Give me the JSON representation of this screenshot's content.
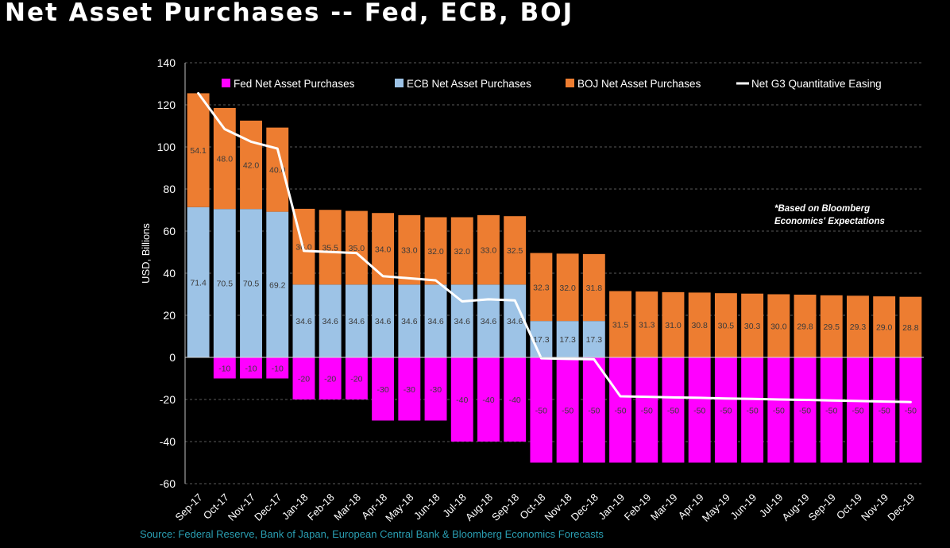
{
  "title": "Net Asset Purchases -- Fed, ECB, BOJ",
  "source": "Source: Federal Reserve, Bank of Japan, European Central Bank & Bloomberg Economics Forecasts",
  "footnote": [
    "*Based on Bloomberg",
    "Economics' Expectations"
  ],
  "colors": {
    "fed": "#ff00ff",
    "ecb": "#9dc3e6",
    "boj": "#ed7d31",
    "line": "#ffffff",
    "grid": "#808080",
    "text": "#ffffff",
    "source": "#2a9fb3"
  },
  "chart_data": {
    "type": "bar",
    "stacked": true,
    "ylabel": "USD, Billions",
    "ylim": [
      -60,
      140
    ],
    "yticks": [
      -60,
      -40,
      -20,
      0,
      20,
      40,
      60,
      80,
      100,
      120,
      140
    ],
    "grid": true,
    "legend_position": "top",
    "categories": [
      "Sep-17",
      "Oct-17",
      "Nov-17",
      "Dec-17",
      "Jan-18",
      "Feb-18",
      "Mar-18",
      "Apr-18",
      "May-18",
      "Jun-18",
      "Jul-18",
      "Aug-18",
      "Sep-18",
      "Oct-18",
      "Nov-18",
      "Dec-18",
      "Jan-19",
      "Feb-19",
      "Mar-19",
      "Apr-19",
      "May-19",
      "Jun-19",
      "Jul-19",
      "Aug-19",
      "Sep-19",
      "Oct-19",
      "Nov-19",
      "Dec-19"
    ],
    "series": [
      {
        "name": "Fed Net Asset Purchases",
        "type": "bar",
        "color_key": "fed",
        "values": [
          0,
          -10,
          -10,
          -10,
          -20,
          -20,
          -20,
          -30,
          -30,
          -30,
          -40,
          -40,
          -40,
          -50,
          -50,
          -50,
          -50,
          -50,
          -50,
          -50,
          -50,
          -50,
          -50,
          -50,
          -50,
          -50,
          -50,
          -50
        ]
      },
      {
        "name": "ECB Net Asset Purchases",
        "type": "bar",
        "color_key": "ecb",
        "values": [
          71.4,
          70.5,
          70.5,
          69.2,
          34.6,
          34.6,
          34.6,
          34.6,
          34.6,
          34.6,
          34.6,
          34.6,
          34.6,
          17.3,
          17.3,
          17.3,
          0,
          0,
          0,
          0,
          0,
          0,
          0,
          0,
          0,
          0,
          0,
          0
        ]
      },
      {
        "name": "BOJ Net Asset Purchases",
        "type": "bar",
        "color_key": "boj",
        "values": [
          54.1,
          48.0,
          42.0,
          40.0,
          36.0,
          35.5,
          35.0,
          34.0,
          33.0,
          32.0,
          32.0,
          33.0,
          32.5,
          32.3,
          32.0,
          31.8,
          31.5,
          31.3,
          31.0,
          30.8,
          30.5,
          30.3,
          30.0,
          29.8,
          29.5,
          29.3,
          29.0,
          28.8
        ]
      },
      {
        "name": "Net G3 Quantitative Easing",
        "type": "line",
        "color_key": "line",
        "values": [
          125.5,
          108.5,
          102.5,
          99.2,
          50.6,
          50.1,
          49.6,
          38.6,
          37.6,
          36.6,
          26.6,
          27.6,
          27.1,
          -0.4,
          -0.7,
          -0.9,
          -18.5,
          -18.7,
          -19.0,
          -19.2,
          -19.5,
          -19.7,
          -20.0,
          -20.2,
          -20.5,
          -20.7,
          -21.0,
          -21.2
        ]
      }
    ],
    "data_labels": {
      "fed": [
        "",
        "-10",
        "-10",
        "-10",
        "-20",
        "-20",
        "-20",
        "-30",
        "-30",
        "-30",
        "-40",
        "-40",
        "-40",
        "-50",
        "-50",
        "-50",
        "-50",
        "-50",
        "-50",
        "-50",
        "-50",
        "-50",
        "-50",
        "-50",
        "-50",
        "-50",
        "-50",
        "-50"
      ],
      "ecb": [
        "71.4",
        "70.5",
        "70.5",
        "69.2",
        "34.6",
        "34.6",
        "34.6",
        "34.6",
        "34.6",
        "34.6",
        "34.6",
        "34.6",
        "34.6",
        "17.3",
        "17.3",
        "17.3",
        "",
        "",
        "",
        "",
        "",
        "",
        "",
        "",
        "",
        "",
        "",
        ""
      ],
      "boj": [
        "54.1",
        "48.0",
        "42.0",
        "40.0",
        "36.0",
        "35.5",
        "35.0",
        "34.0",
        "33.0",
        "32.0",
        "32.0",
        "33.0",
        "32.5",
        "32.3",
        "32.0",
        "31.8",
        "31.5",
        "31.3",
        "31.0",
        "30.8",
        "30.5",
        "30.3",
        "30.0",
        "29.8",
        "29.5",
        "29.3",
        "29.0",
        "28.8"
      ]
    }
  }
}
